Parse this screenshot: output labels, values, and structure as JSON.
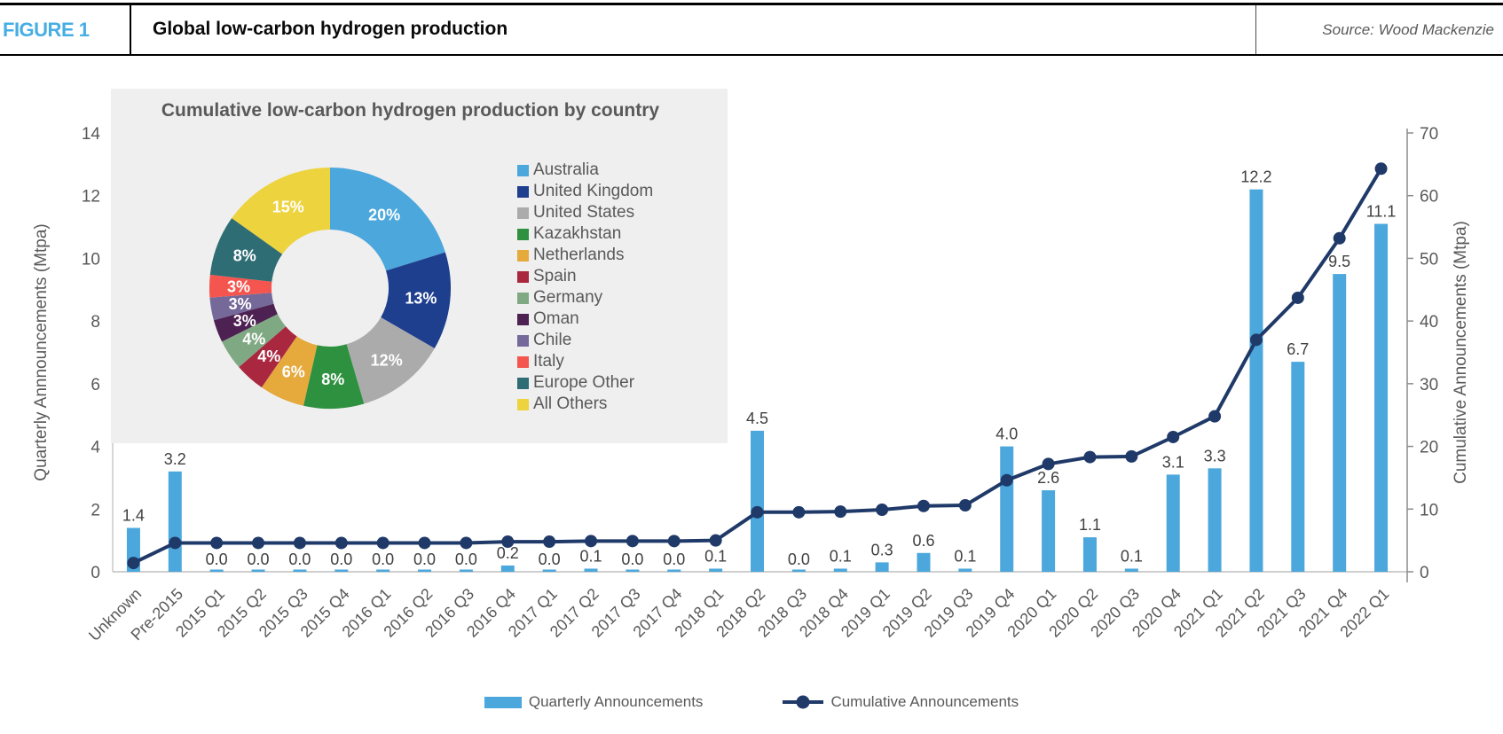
{
  "header": {
    "figure_label": "FIGURE 1",
    "title": "Global low-carbon hydrogen production",
    "source": "Source: Wood Mackenzie"
  },
  "colors": {
    "figure_label_blue": "#47AEE4",
    "bar_blue": "#4BA7DC",
    "line_navy": "#1F3968",
    "axis_text_gray": "#595959",
    "value_label_gray": "#404040",
    "inset_bg_gray": "#EFEFEF"
  },
  "chart_data": [
    {
      "type": "bar",
      "subtype": "combo-bar-line-dual-axis",
      "categories": [
        "Unknown",
        "Pre-2015",
        "2015 Q1",
        "2015 Q2",
        "2015 Q3",
        "2015 Q4",
        "2016 Q1",
        "2016 Q2",
        "2016 Q3",
        "2016 Q4",
        "2017 Q1",
        "2017 Q2",
        "2017 Q3",
        "2017 Q4",
        "2018 Q1",
        "2018 Q2",
        "2018 Q3",
        "2018 Q4",
        "2019 Q1",
        "2019 Q2",
        "2019 Q3",
        "2019 Q4",
        "2020 Q1",
        "2020 Q2",
        "2020 Q3",
        "2020 Q4",
        "2021 Q1",
        "2021 Q2",
        "2021 Q3",
        "2021 Q4",
        "2022 Q1"
      ],
      "series": [
        {
          "name": "Quarterly Announcements",
          "type": "bar",
          "axis": "left",
          "color": "#4BA7DC",
          "values": [
            1.4,
            3.2,
            0.0,
            0.0,
            0.0,
            0.0,
            0.0,
            0.0,
            0.0,
            0.2,
            0.0,
            0.1,
            0.0,
            0.0,
            0.1,
            4.5,
            0.0,
            0.1,
            0.3,
            0.6,
            0.1,
            4.0,
            2.6,
            1.1,
            0.1,
            3.1,
            3.3,
            12.2,
            6.7,
            9.5,
            11.1
          ]
        },
        {
          "name": "Cumulative Announcements",
          "type": "line",
          "axis": "right",
          "color": "#1F3968",
          "values": [
            1.4,
            4.6,
            4.6,
            4.6,
            4.6,
            4.6,
            4.6,
            4.6,
            4.6,
            4.8,
            4.8,
            4.9,
            4.9,
            4.9,
            5.0,
            9.5,
            9.5,
            9.6,
            9.9,
            10.5,
            10.6,
            14.6,
            17.2,
            18.3,
            18.4,
            21.5,
            24.8,
            37.0,
            43.7,
            53.2,
            64.3
          ]
        }
      ],
      "ylabel_left": "Quarterly Annnouncements (Mtpa)",
      "ylabel_right": "Cumulative Announcements (Mtpa)",
      "ylim_left": [
        0,
        14
      ],
      "ylim_right": [
        0,
        70
      ],
      "yticks_left": [
        0,
        2,
        4,
        6,
        8,
        10,
        12,
        14
      ],
      "yticks_right": [
        0,
        10,
        20,
        30,
        40,
        50,
        60,
        70
      ],
      "bar_value_labels_shown": true,
      "grid": false,
      "legend_position": "bottom"
    },
    {
      "type": "pie",
      "subtype": "donut",
      "title": "Cumulative low-carbon hydrogen production by country",
      "labels": [
        "Australia",
        "United Kingdom",
        "United States",
        "Kazakhstan",
        "Netherlands",
        "Spain",
        "Germany",
        "Oman",
        "Chile",
        "Italy",
        "Europe Other",
        "All Others"
      ],
      "values_pct": [
        20,
        13,
        12,
        8,
        6,
        4,
        4,
        3,
        3,
        3,
        8,
        15
      ],
      "colors": [
        "#4BA7DC",
        "#1E3E8E",
        "#ABABAB",
        "#2E9140",
        "#E5A93C",
        "#A92840",
        "#7FA983",
        "#4E2153",
        "#756999",
        "#F4564F",
        "#2E6D74",
        "#EDD33E"
      ],
      "legend_position": "right",
      "slice_label_format": "percent"
    }
  ]
}
